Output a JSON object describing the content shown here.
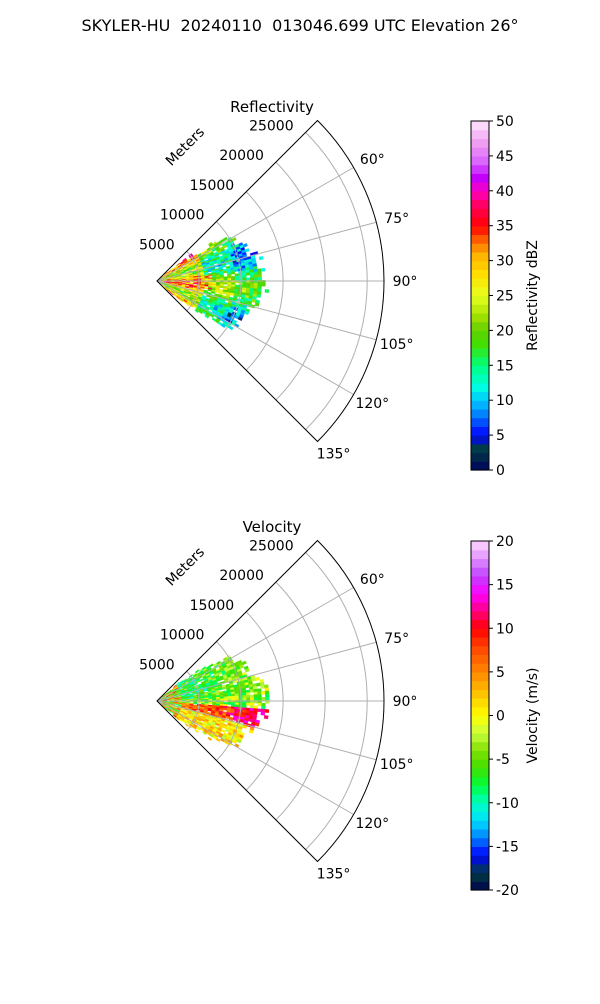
{
  "suptitle": "SKYLER-HU  20240110  013046.699 UTC Elevation 26°",
  "chart_data": [
    {
      "type": "polar-sector",
      "title": "Reflectivity",
      "radial_label": "Meters",
      "radial_ticks": [
        5000,
        10000,
        15000,
        20000,
        25000
      ],
      "radial_max": 27000,
      "angle_range_deg": [
        45,
        135
      ],
      "angle_ticks": [
        "60°",
        "75°",
        "90°",
        "105°",
        "120°",
        "135°"
      ],
      "grid": true,
      "colorbar": {
        "label": "Reflectivity dBZ",
        "range": [
          0,
          50
        ],
        "ticks": [
          0,
          5,
          10,
          15,
          20,
          25,
          30,
          35,
          40,
          45,
          50
        ],
        "colormap": "NWSRef"
      },
      "data_extent_m": 13000,
      "data_summary": "Echoes within ~13 km; mostly 15–25 dBZ with 30–38 dBZ cores near 3–5 km range"
    },
    {
      "type": "polar-sector",
      "title": "Velocity",
      "radial_label": "Meters",
      "radial_ticks": [
        5000,
        10000,
        15000,
        20000,
        25000
      ],
      "radial_max": 27000,
      "angle_range_deg": [
        45,
        135
      ],
      "angle_ticks": [
        "60°",
        "75°",
        "90°",
        "105°",
        "120°",
        "135°"
      ],
      "grid": true,
      "colorbar": {
        "label": "Velocity (m/s)",
        "range": [
          -20,
          20
        ],
        "ticks": [
          -20,
          -15,
          -10,
          -5,
          0,
          5,
          10,
          15,
          20
        ],
        "colormap": "NWSVel"
      },
      "data_extent_m": 13000,
      "data_summary": "Inbound -10 m/s near 60–90° azimuth, outbound 5–12 m/s band near 95–110° azimuth"
    }
  ]
}
